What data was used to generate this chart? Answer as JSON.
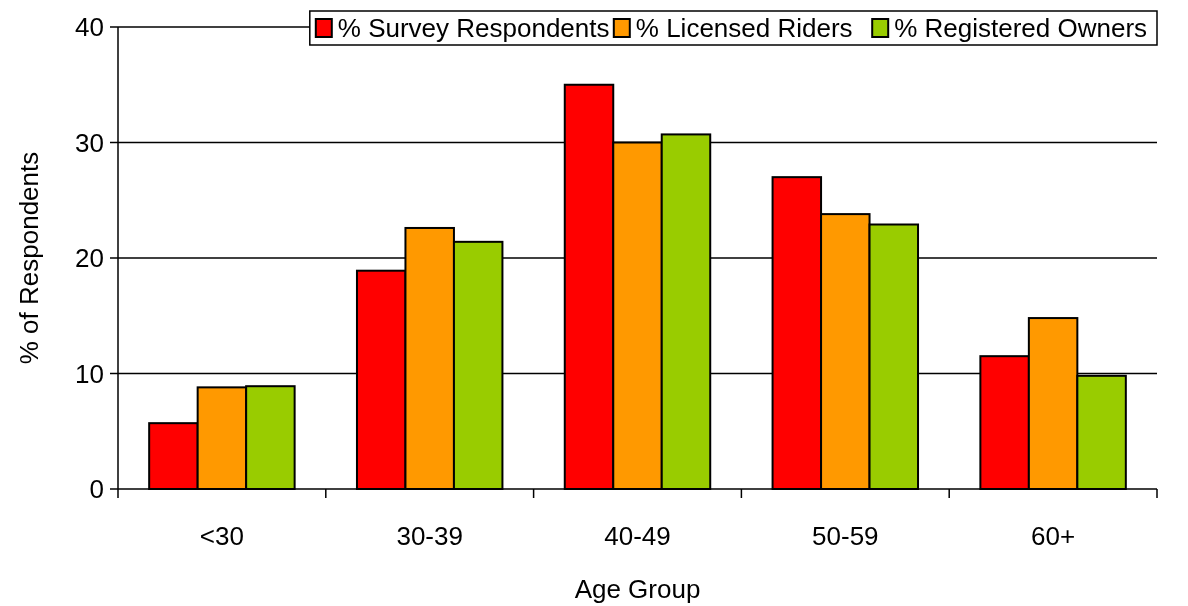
{
  "chart_data": {
    "type": "bar",
    "xlabel": "Age Group",
    "ylabel": "% of Respondents",
    "categories": [
      "<30",
      "30-39",
      "40-49",
      "50-59",
      "60+"
    ],
    "series": [
      {
        "name": "% Survey Respondents",
        "color": "#ff0000",
        "values": [
          5.7,
          18.9,
          35.0,
          27.0,
          11.5
        ]
      },
      {
        "name": "% Licensed Riders",
        "color": "#ff9900",
        "values": [
          8.8,
          22.6,
          30.0,
          23.8,
          14.8
        ]
      },
      {
        "name": "% Registered Owners",
        "color": "#99cc00",
        "values": [
          8.9,
          21.4,
          30.7,
          22.9,
          9.8
        ]
      }
    ],
    "ylim": [
      0,
      40
    ],
    "yticks": [
      0,
      10,
      20,
      30,
      40
    ],
    "grid": "y",
    "legend": "top right"
  }
}
